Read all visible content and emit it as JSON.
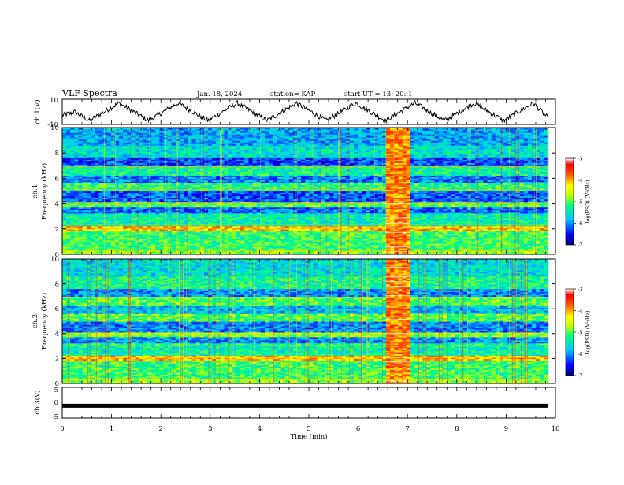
{
  "header": {
    "title": "VLF Spectra",
    "date": "Jan. 18, 2024",
    "station": "station= KAP",
    "start_time": "start UT =  13: 20: 1"
  },
  "chart_data": [
    {
      "type": "line",
      "panel": "ch1-voltage",
      "ylabel": "ch.1(V)",
      "ylim": [
        -10,
        10
      ],
      "yticks": [
        "10",
        "-10"
      ],
      "xlim": [
        0,
        10
      ],
      "series": [
        {
          "x": [
            0,
            0.25,
            0.55,
            0.85,
            1.15,
            1.45,
            1.75,
            2.05,
            2.35,
            2.65,
            2.95,
            3.25,
            3.55,
            3.85,
            4.15,
            4.45,
            4.75,
            5.05,
            5.35,
            5.65,
            5.95,
            6.25,
            6.55,
            6.85,
            7.15,
            7.45,
            7.75,
            8.05,
            8.35,
            8.65,
            8.95,
            9.25,
            9.55,
            9.85
          ],
          "values": [
            -3,
            0,
            -7,
            0,
            7,
            0,
            -7,
            0,
            7,
            0,
            -7,
            0,
            7,
            0,
            -7,
            0,
            7,
            0,
            -7,
            0,
            7,
            0,
            -7,
            0,
            7,
            0,
            -7,
            0,
            7,
            0,
            -7,
            0,
            7,
            -5
          ]
        }
      ]
    },
    {
      "type": "heatmap",
      "panel": "ch1-spectrogram",
      "ylabel_line1": "ch.1",
      "ylabel_line2": "Frequency (kHz)",
      "xlim": [
        0,
        9.85
      ],
      "ylim": [
        0,
        10
      ],
      "yticks": [
        "0",
        "2",
        "4",
        "6",
        "8",
        "10"
      ],
      "colorbar_label": "log(PSD) (V²/Hz)",
      "colorbar_ticks": [
        "-3",
        "-4",
        "-5",
        "-6",
        "-7"
      ],
      "colorbar_range": [
        -7,
        -3
      ],
      "burst_interval_min": [
        6.55,
        7.05
      ]
    },
    {
      "type": "heatmap",
      "panel": "ch2-spectrogram",
      "ylabel_line1": "ch.2",
      "ylabel_line2": "Frequency (kHz)",
      "xlim": [
        0,
        9.85
      ],
      "ylim": [
        0,
        10
      ],
      "yticks": [
        "0",
        "2",
        "4",
        "6",
        "8",
        "10"
      ],
      "colorbar_label": "log(PSD) (V²/Hz)",
      "colorbar_ticks": [
        "-3",
        "-4",
        "-5",
        "-6",
        "-7"
      ],
      "colorbar_range": [
        -7,
        -3
      ],
      "burst_interval_min": [
        6.55,
        7.05
      ]
    },
    {
      "type": "line",
      "panel": "ch3-voltage",
      "ylabel": "ch.3(V)",
      "ylim": [
        -5,
        5
      ],
      "yticks": [
        "5",
        "0",
        "-5"
      ],
      "xlim": [
        0,
        10
      ],
      "series": [
        {
          "x": [
            0,
            9.85
          ],
          "values": [
            -1,
            -1
          ]
        }
      ]
    }
  ],
  "xaxis": {
    "label": "Time (min)",
    "ticks": [
      "0",
      "1",
      "2",
      "3",
      "4",
      "5",
      "6",
      "7",
      "8",
      "9",
      "10"
    ],
    "range": [
      0,
      10
    ]
  },
  "colors": {
    "axis": "#000000",
    "trace": "#000000",
    "colormap": [
      "#000070",
      "#0000ff",
      "#00c8ff",
      "#00ff7f",
      "#c8ff00",
      "#ffff00",
      "#ff5000",
      "#ff0000",
      "#ffffff"
    ]
  }
}
